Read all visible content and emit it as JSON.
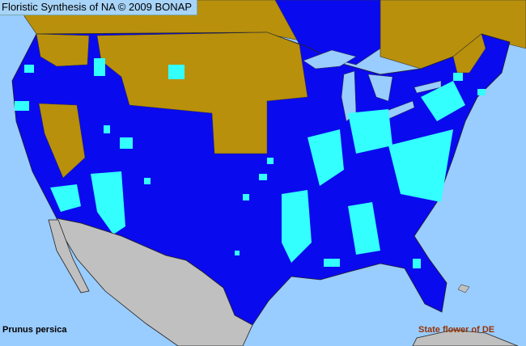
{
  "title": "Floristic Synthesis of NA © 2009 BONAP",
  "species": "Prunus persica",
  "note": "State flower of DE",
  "colors": {
    "ocean": "#99ccff",
    "present": "#0a0aee",
    "not_present": "#b8900c",
    "adventive_cyan": "#33ffff",
    "mexico": "#c0c0c0",
    "borders": "#333333",
    "note_text": "#993300"
  }
}
